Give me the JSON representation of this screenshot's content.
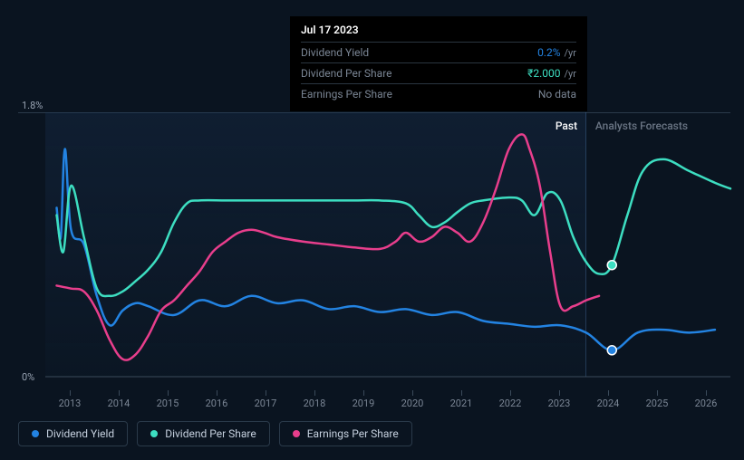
{
  "tooltip": {
    "date": "Jul 17 2023",
    "rows": [
      {
        "label": "Dividend Yield",
        "value": "0.2%",
        "unit": "/yr",
        "color": "#2383e2"
      },
      {
        "label": "Dividend Per Share",
        "value": "₹2.000",
        "unit": "/yr",
        "color": "#3ddec1"
      },
      {
        "label": "Earnings Per Share",
        "value": null,
        "nodata": "No data"
      }
    ]
  },
  "chart": {
    "type": "line",
    "background_color": "#0a1420",
    "past_region_opacity": 0.2,
    "y_axis": {
      "max_label": "1.8%",
      "min_label": "0%",
      "ylim": [
        0,
        1.8
      ]
    },
    "x_axis": {
      "ticks": [
        "2013",
        "2014",
        "2015",
        "2016",
        "2017",
        "2018",
        "2019",
        "2020",
        "2021",
        "2022",
        "2023",
        "2024",
        "2025",
        "2026"
      ],
      "past_until_index": 10.5
    },
    "section_labels": {
      "past": "Past",
      "forecast": "Analysts Forecasts"
    },
    "series": [
      {
        "name": "Dividend Yield",
        "color": "#2383e2",
        "line_width": 2.5,
        "points": [
          [
            0.22,
            1.15
          ],
          [
            0.3,
            0.95
          ],
          [
            0.38,
            1.55
          ],
          [
            0.5,
            1.0
          ],
          [
            0.75,
            0.9
          ],
          [
            1.0,
            0.55
          ],
          [
            1.25,
            0.35
          ],
          [
            1.5,
            0.45
          ],
          [
            1.75,
            0.5
          ],
          [
            2.0,
            0.48
          ],
          [
            2.5,
            0.42
          ],
          [
            3.0,
            0.52
          ],
          [
            3.5,
            0.48
          ],
          [
            4.0,
            0.55
          ],
          [
            4.5,
            0.5
          ],
          [
            5.0,
            0.52
          ],
          [
            5.5,
            0.46
          ],
          [
            6.0,
            0.48
          ],
          [
            6.5,
            0.44
          ],
          [
            7.0,
            0.46
          ],
          [
            7.5,
            0.42
          ],
          [
            8.0,
            0.44
          ],
          [
            8.5,
            0.38
          ],
          [
            9.0,
            0.36
          ],
          [
            9.5,
            0.34
          ],
          [
            10.0,
            0.35
          ],
          [
            10.5,
            0.3
          ],
          [
            11.0,
            0.18
          ],
          [
            11.5,
            0.3
          ],
          [
            12.0,
            0.32
          ],
          [
            12.5,
            0.3
          ],
          [
            13.0,
            0.32
          ]
        ],
        "marker_at": [
          11.0,
          0.18
        ]
      },
      {
        "name": "Dividend Per Share",
        "color": "#3ddec1",
        "line_width": 2.5,
        "points": [
          [
            0.22,
            1.1
          ],
          [
            0.35,
            0.85
          ],
          [
            0.5,
            1.3
          ],
          [
            0.75,
            0.95
          ],
          [
            1.0,
            0.6
          ],
          [
            1.25,
            0.55
          ],
          [
            1.5,
            0.58
          ],
          [
            1.75,
            0.65
          ],
          [
            2.0,
            0.73
          ],
          [
            2.25,
            0.85
          ],
          [
            2.5,
            1.05
          ],
          [
            2.75,
            1.18
          ],
          [
            3.0,
            1.2
          ],
          [
            3.5,
            1.2
          ],
          [
            4.0,
            1.2
          ],
          [
            4.5,
            1.2
          ],
          [
            5.0,
            1.2
          ],
          [
            5.5,
            1.2
          ],
          [
            6.0,
            1.2
          ],
          [
            6.5,
            1.2
          ],
          [
            7.0,
            1.18
          ],
          [
            7.25,
            1.1
          ],
          [
            7.5,
            1.02
          ],
          [
            7.75,
            1.05
          ],
          [
            8.0,
            1.12
          ],
          [
            8.25,
            1.18
          ],
          [
            8.5,
            1.2
          ],
          [
            9.0,
            1.22
          ],
          [
            9.25,
            1.2
          ],
          [
            9.5,
            1.1
          ],
          [
            9.75,
            1.25
          ],
          [
            10.0,
            1.2
          ],
          [
            10.25,
            0.95
          ],
          [
            10.5,
            0.78
          ],
          [
            10.75,
            0.7
          ],
          [
            11.0,
            0.76
          ],
          [
            11.3,
            1.1
          ],
          [
            11.6,
            1.4
          ],
          [
            12.0,
            1.48
          ],
          [
            12.5,
            1.4
          ],
          [
            13.0,
            1.32
          ],
          [
            13.3,
            1.28
          ]
        ],
        "marker_at": [
          11.0,
          0.76
        ]
      },
      {
        "name": "Earnings Per Share",
        "color": "#e83e8c",
        "line_width": 2.5,
        "points": [
          [
            0.22,
            0.62
          ],
          [
            0.5,
            0.6
          ],
          [
            0.75,
            0.58
          ],
          [
            1.0,
            0.45
          ],
          [
            1.25,
            0.25
          ],
          [
            1.5,
            0.12
          ],
          [
            1.75,
            0.15
          ],
          [
            2.0,
            0.28
          ],
          [
            2.25,
            0.45
          ],
          [
            2.5,
            0.52
          ],
          [
            2.75,
            0.62
          ],
          [
            3.0,
            0.72
          ],
          [
            3.25,
            0.85
          ],
          [
            3.5,
            0.92
          ],
          [
            3.75,
            0.98
          ],
          [
            4.0,
            1.0
          ],
          [
            4.25,
            0.98
          ],
          [
            4.5,
            0.95
          ],
          [
            5.0,
            0.92
          ],
          [
            5.5,
            0.9
          ],
          [
            6.0,
            0.88
          ],
          [
            6.5,
            0.87
          ],
          [
            6.8,
            0.92
          ],
          [
            7.0,
            0.98
          ],
          [
            7.25,
            0.92
          ],
          [
            7.5,
            0.95
          ],
          [
            7.75,
            1.02
          ],
          [
            8.0,
            0.98
          ],
          [
            8.25,
            0.92
          ],
          [
            8.5,
            1.05
          ],
          [
            8.75,
            1.28
          ],
          [
            9.0,
            1.55
          ],
          [
            9.25,
            1.65
          ],
          [
            9.4,
            1.55
          ],
          [
            9.6,
            1.3
          ],
          [
            9.8,
            0.85
          ],
          [
            10.0,
            0.48
          ],
          [
            10.25,
            0.48
          ],
          [
            10.5,
            0.52
          ],
          [
            10.75,
            0.55
          ]
        ]
      }
    ],
    "legend": [
      {
        "label": "Dividend Yield",
        "color": "#2383e2"
      },
      {
        "label": "Dividend Per Share",
        "color": "#3ddec1"
      },
      {
        "label": "Earnings Per Share",
        "color": "#e83e8c"
      }
    ]
  }
}
